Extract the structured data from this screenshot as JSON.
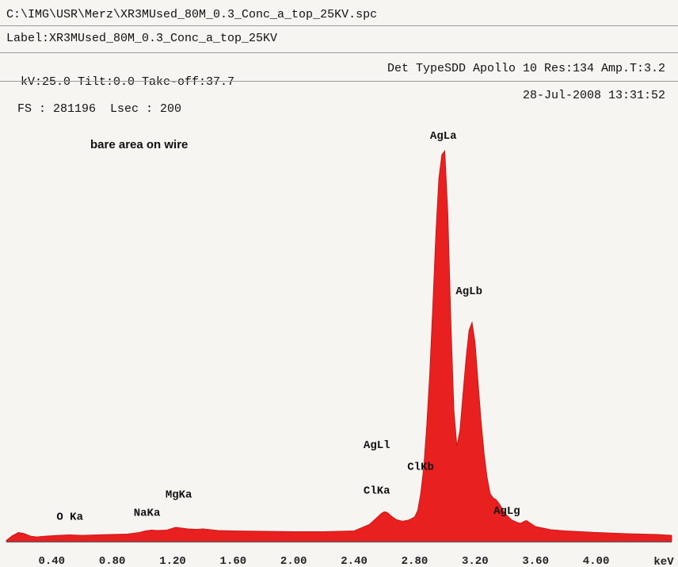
{
  "header": {
    "file_path": "C:\\IMG\\USR\\Merz\\XR3MUsed_80M_0.3_Conc_a_top_25KV.spc",
    "label": "Label:XR3MUsed_80M_0.3_Conc_a_top_25KV",
    "params_left": "kV:25.0 Tilt:0.0 Take-off:37.7",
    "params_right": "Det TypeSDD Apollo 10 Res:134 Amp.T:3.2",
    "fs": "FS : 281196  Lsec : 200",
    "datetime": "28-Jul-2008 13:31:52"
  },
  "colors": {
    "spectrum": "#e8201f",
    "axis": "#666666",
    "background": "#f6f5f2"
  },
  "chart_data": {
    "type": "area",
    "title": "",
    "annotation": "bare area on wire",
    "xlabel": "keV",
    "ylabel": "",
    "xlim": [
      0.1,
      4.5
    ],
    "ylim": [
      0,
      100
    ],
    "grid": false,
    "x_ticks": [
      0.4,
      0.8,
      1.2,
      1.6,
      2.0,
      2.4,
      2.8,
      3.2,
      3.6,
      4.0
    ],
    "x_tick_labels": [
      "0.40",
      "0.80",
      "1.20",
      "1.60",
      "2.00",
      "2.40",
      "2.80",
      "3.20",
      "3.60",
      "4.00"
    ],
    "series": [
      {
        "x": [
          0.1,
          0.14,
          0.18,
          0.22,
          0.26,
          0.3,
          0.36,
          0.44,
          0.52,
          0.6,
          0.7,
          0.8,
          0.9,
          0.98,
          1.02,
          1.06,
          1.1,
          1.16,
          1.22,
          1.26,
          1.3,
          1.36,
          1.4,
          1.5,
          1.6,
          1.8,
          2.0,
          2.2,
          2.4,
          2.5,
          2.55,
          2.58,
          2.6,
          2.62,
          2.65,
          2.68,
          2.72,
          2.76,
          2.8,
          2.82,
          2.84,
          2.86,
          2.88,
          2.9,
          2.92,
          2.94,
          2.96,
          2.98,
          3.0,
          3.02,
          3.04,
          3.06,
          3.08,
          3.1,
          3.12,
          3.14,
          3.16,
          3.18,
          3.2,
          3.22,
          3.24,
          3.26,
          3.28,
          3.3,
          3.32,
          3.34,
          3.36,
          3.4,
          3.44,
          3.48,
          3.5,
          3.52,
          3.54,
          3.56,
          3.6,
          3.7,
          3.8,
          3.9,
          4.0,
          4.2,
          4.4,
          4.5
        ],
        "y": [
          0.3,
          1.5,
          2.3,
          2.0,
          1.4,
          1.2,
          1.4,
          1.6,
          1.7,
          1.6,
          1.7,
          1.8,
          1.9,
          2.3,
          2.7,
          2.9,
          2.8,
          2.9,
          3.6,
          3.4,
          3.2,
          3.1,
          3.2,
          2.8,
          2.7,
          2.6,
          2.5,
          2.5,
          2.7,
          4.3,
          6.0,
          7.1,
          7.5,
          7.3,
          6.3,
          5.5,
          5.1,
          5.4,
          6.2,
          7.8,
          12.0,
          18.5,
          29.0,
          42.0,
          59.0,
          77.0,
          91.0,
          97.0,
          98.0,
          82.0,
          55.0,
          33.0,
          24.0,
          28.0,
          37.0,
          46.0,
          53.0,
          55.0,
          50.0,
          40.0,
          30.0,
          22.0,
          16.0,
          12.0,
          11.0,
          10.5,
          9.5,
          7.0,
          5.5,
          4.8,
          4.6,
          5.0,
          5.3,
          4.8,
          3.8,
          3.0,
          2.7,
          2.5,
          2.3,
          2.0,
          1.8,
          1.6
        ]
      }
    ],
    "peak_labels": [
      {
        "label": "O Ka",
        "x": 0.52,
        "y": 5.5
      },
      {
        "label": "NaKa",
        "x": 1.03,
        "y": 6.5
      },
      {
        "label": "MgKa",
        "x": 1.24,
        "y": 11.0
      },
      {
        "label": "ClKa",
        "x": 2.55,
        "y": 12.0
      },
      {
        "label": "AgLl",
        "x": 2.55,
        "y": 23.5
      },
      {
        "label": "ClKb",
        "x": 2.84,
        "y": 18.0
      },
      {
        "label": "AgLb",
        "x": 3.16,
        "y": 62.0
      },
      {
        "label": "AgLg",
        "x": 3.41,
        "y": 7.0
      },
      {
        "label": "AgLa",
        "x": 2.99,
        "y": 101.0
      }
    ]
  }
}
